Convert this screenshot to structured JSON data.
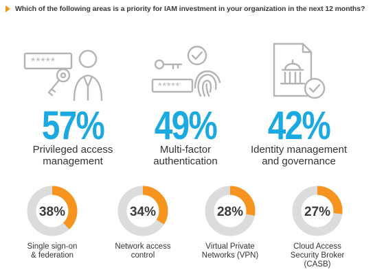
{
  "header": {
    "question": "Which of the following areas is a priority for IAM investment in your organization in the next 12 months?",
    "accent": "#f7941d"
  },
  "colors": {
    "big_percent": "#1aa9e1",
    "donut_fill": "#f7941d",
    "donut_track": "#dcdcdc",
    "icon_stroke": "#b4b4b4"
  },
  "top_items": [
    {
      "value": "57%",
      "label_line1": "Privileged access",
      "label_line2": "management",
      "icon": "password-key-user-icon"
    },
    {
      "value": "49%",
      "label_line1": "Multi-factor",
      "label_line2": "authentication",
      "icon": "key-fingerprint-check-icon"
    },
    {
      "value": "42%",
      "label_line1": "Identity management",
      "label_line2": "and governance",
      "icon": "document-building-check-icon"
    }
  ],
  "bottom_items": [
    {
      "value": "38%",
      "label_lines": [
        "Single sign-on",
        "& federation"
      ]
    },
    {
      "value": "34%",
      "label_lines": [
        "Network access",
        "control"
      ]
    },
    {
      "value": "28%",
      "label_lines": [
        "Virtual Private",
        "Networks (VPN)"
      ]
    },
    {
      "value": "27%",
      "label_lines": [
        "Cloud Access",
        "Security Broker",
        "(CASB)"
      ]
    }
  ],
  "chart_data": {
    "type": "bar",
    "title": "Which of the following areas is a priority for IAM investment in your organization in the next 12 months?",
    "categories": [
      "Privileged access management",
      "Multi-factor authentication",
      "Identity management and governance",
      "Single sign-on & federation",
      "Network access control",
      "Virtual Private Networks (VPN)",
      "Cloud Access Security Broker (CASB)"
    ],
    "values": [
      57,
      49,
      42,
      38,
      34,
      28,
      27
    ],
    "unit": "%",
    "ylim": [
      0,
      100
    ]
  }
}
